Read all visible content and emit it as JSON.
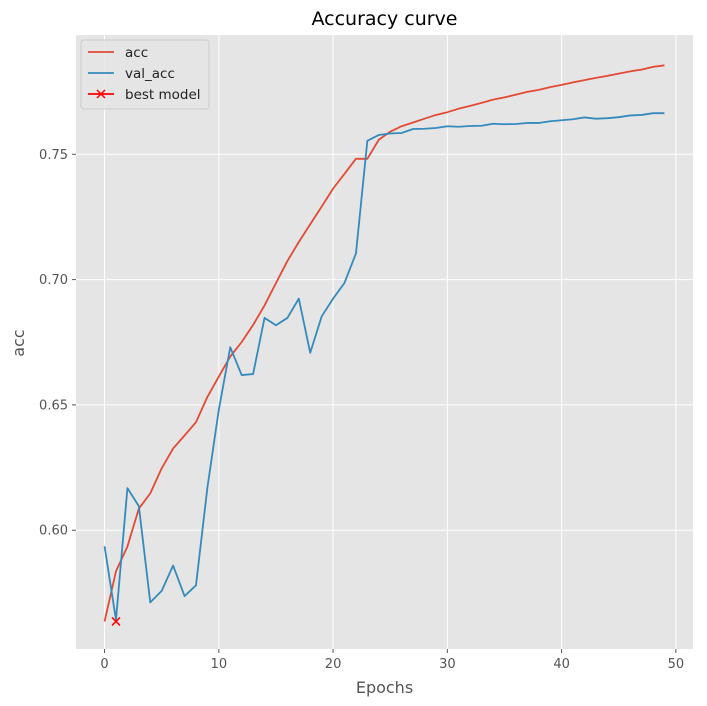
{
  "chart_data": {
    "type": "line",
    "title": "Accuracy curve",
    "xlabel": "Epochs",
    "ylabel": "acc",
    "xlim": [
      -2.5,
      51.5
    ],
    "ylim": [
      0.5526,
      0.7976
    ],
    "xticks": [
      0,
      10,
      20,
      30,
      40,
      50
    ],
    "xtick_labels": [
      "0",
      "10",
      "20",
      "30",
      "40",
      "50"
    ],
    "yticks": [
      0.6,
      0.65,
      0.7,
      0.75
    ],
    "ytick_labels": [
      "0.60",
      "0.65",
      "0.70",
      "0.75"
    ],
    "grid": true,
    "legend_position": "upper-left",
    "series": [
      {
        "name": "acc",
        "color": "#E24A33",
        "x": [
          0,
          1,
          2,
          3,
          4,
          5,
          6,
          7,
          8,
          9,
          10,
          11,
          12,
          13,
          14,
          15,
          16,
          17,
          18,
          19,
          20,
          21,
          22,
          23,
          24,
          25,
          26,
          27,
          28,
          29,
          30,
          31,
          32,
          33,
          34,
          35,
          36,
          37,
          38,
          39,
          40,
          41,
          42,
          43,
          44,
          45,
          46,
          47,
          48,
          49
        ],
        "values": [
          0.5636,
          0.5836,
          0.5935,
          0.6086,
          0.6147,
          0.6247,
          0.6326,
          0.6378,
          0.6431,
          0.6532,
          0.6613,
          0.6693,
          0.6751,
          0.6819,
          0.6897,
          0.6986,
          0.7074,
          0.715,
          0.7221,
          0.7291,
          0.7363,
          0.7422,
          0.7482,
          0.7482,
          0.7558,
          0.759,
          0.7612,
          0.7627,
          0.7642,
          0.7657,
          0.7668,
          0.7682,
          0.7693,
          0.7705,
          0.7718,
          0.7727,
          0.7738,
          0.7749,
          0.7757,
          0.7768,
          0.7777,
          0.7787,
          0.7796,
          0.7805,
          0.7813,
          0.7822,
          0.7831,
          0.7838,
          0.7849,
          0.7855
        ]
      },
      {
        "name": "val_acc",
        "color": "#348ABD",
        "x": [
          0,
          1,
          2,
          3,
          4,
          5,
          6,
          7,
          8,
          9,
          10,
          11,
          12,
          13,
          14,
          15,
          16,
          17,
          18,
          19,
          20,
          21,
          22,
          23,
          24,
          25,
          26,
          27,
          28,
          29,
          30,
          31,
          32,
          33,
          34,
          35,
          36,
          37,
          38,
          39,
          40,
          41,
          42,
          43,
          44,
          45,
          46,
          47,
          48,
          49
        ],
        "values": [
          0.5936,
          0.5642,
          0.6168,
          0.6096,
          0.5712,
          0.5758,
          0.5859,
          0.5737,
          0.578,
          0.617,
          0.6481,
          0.673,
          0.6619,
          0.6623,
          0.6847,
          0.6818,
          0.6847,
          0.6924,
          0.6708,
          0.6853,
          0.6924,
          0.6987,
          0.7104,
          0.7554,
          0.7577,
          0.7583,
          0.7585,
          0.7601,
          0.7602,
          0.7605,
          0.7612,
          0.761,
          0.7613,
          0.7614,
          0.7622,
          0.762,
          0.7621,
          0.7625,
          0.7625,
          0.7632,
          0.7636,
          0.764,
          0.7647,
          0.7642,
          0.7644,
          0.7648,
          0.7655,
          0.7657,
          0.7664,
          0.7664
        ]
      }
    ],
    "markers": [
      {
        "name": "best model",
        "color": "#FF0000",
        "marker": "x",
        "x": 1,
        "y": 0.5636
      }
    ]
  }
}
